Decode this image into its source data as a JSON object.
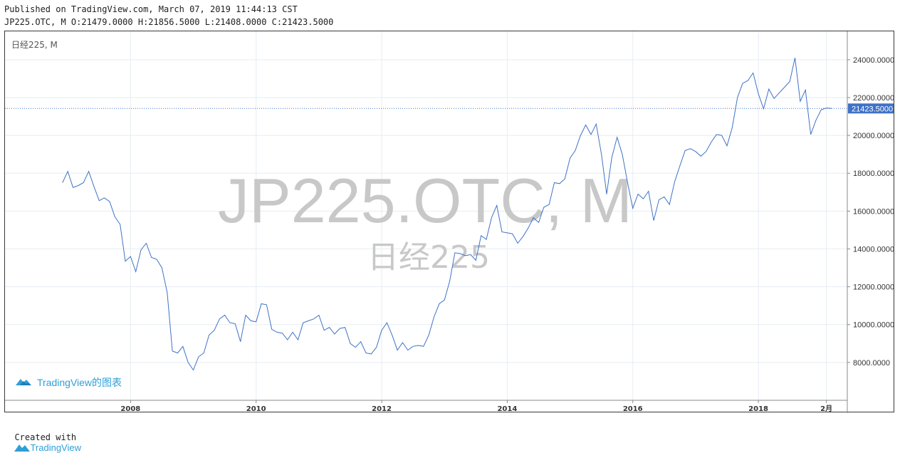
{
  "header": {
    "published": "Published on TradingView.com, March 07, 2019 11:44:13 CST",
    "ohlc": "JP225.OTC, M O:21479.0000 H:21856.5000 L:21408.0000 C:21423.5000"
  },
  "chart_label": "日经225, M",
  "watermark": {
    "symbol": "JP225.OTC, M",
    "name": "日经225"
  },
  "tv_badge": {
    "text": "TradingView的图表",
    "icon": "tradingview-cloud-icon"
  },
  "footer": {
    "created_with": "Created with",
    "brand": "TradingView",
    "icon": "tradingview-cloud-icon"
  },
  "colors": {
    "line": "#3f72c7",
    "grid": "#e6edf2",
    "price_label_bg": "#3f72c7",
    "brand": "#2f9fd8"
  },
  "chart_data": {
    "type": "line",
    "series": [
      {
        "name": "",
        "x": [
          "2006-12",
          "2007-01",
          "2007-02",
          "2007-03",
          "2007-04",
          "2007-05",
          "2007-06",
          "2007-07",
          "2007-08",
          "2007-09",
          "2007-10",
          "2007-11",
          "2007-12",
          "2008-01",
          "2008-02",
          "2008-03",
          "2008-04",
          "2008-05",
          "2008-06",
          "2008-07",
          "2008-08",
          "2008-09",
          "2008-10",
          "2008-11",
          "2008-12",
          "2009-01",
          "2009-02",
          "2009-03",
          "2009-04",
          "2009-05",
          "2009-06",
          "2009-07",
          "2009-08",
          "2009-09",
          "2009-10",
          "2009-11",
          "2009-12",
          "2010-01",
          "2010-02",
          "2010-03",
          "2010-04",
          "2010-05",
          "2010-06",
          "2010-07",
          "2010-08",
          "2010-09",
          "2010-10",
          "2010-11",
          "2010-12",
          "2011-01",
          "2011-02",
          "2011-03",
          "2011-04",
          "2011-05",
          "2011-06",
          "2011-07",
          "2011-08",
          "2011-09",
          "2011-10",
          "2011-11",
          "2011-12",
          "2012-01",
          "2012-02",
          "2012-03",
          "2012-04",
          "2012-05",
          "2012-06",
          "2012-07",
          "2012-08",
          "2012-09",
          "2012-10",
          "2012-11",
          "2012-12",
          "2013-01",
          "2013-02",
          "2013-03",
          "2013-04",
          "2013-05",
          "2013-06",
          "2013-07",
          "2013-08",
          "2013-09",
          "2013-10",
          "2013-11",
          "2013-12",
          "2014-01",
          "2014-02",
          "2014-03",
          "2014-04",
          "2014-05",
          "2014-06",
          "2014-07",
          "2014-08",
          "2014-09",
          "2014-10",
          "2014-11",
          "2014-12",
          "2015-01",
          "2015-02",
          "2015-03",
          "2015-04",
          "2015-05",
          "2015-06",
          "2015-07",
          "2015-08",
          "2015-09",
          "2015-10",
          "2015-11",
          "2015-12",
          "2016-01",
          "2016-02",
          "2016-03",
          "2016-04",
          "2016-05",
          "2016-06",
          "2016-07",
          "2016-08",
          "2016-09",
          "2016-10",
          "2016-11",
          "2016-12",
          "2017-01",
          "2017-02",
          "2017-03",
          "2017-04",
          "2017-05",
          "2017-06",
          "2017-07",
          "2017-08",
          "2017-09",
          "2017-10",
          "2017-11",
          "2017-12",
          "2018-01",
          "2018-02",
          "2018-03",
          "2018-04",
          "2018-05",
          "2018-06",
          "2018-07",
          "2018-08",
          "2018-09",
          "2018-10",
          "2018-11",
          "2018-12",
          "2019-01",
          "2019-02",
          "2019-03"
        ],
        "values": [
          17500,
          18100,
          17250,
          17350,
          17500,
          18100,
          17300,
          16550,
          16700,
          16500,
          15700,
          15300,
          13350,
          13600,
          12800,
          13950,
          14300,
          13550,
          13450,
          13000,
          11700,
          8600,
          8500,
          8850,
          8000,
          7600,
          8300,
          8500,
          9450,
          9700,
          10300,
          10500,
          10100,
          10050,
          9100,
          10500,
          10200,
          10150,
          11100,
          11050,
          9750,
          9600,
          9550,
          9200,
          9600,
          9200,
          10100,
          10200,
          10300,
          10500,
          9700,
          9850,
          9500,
          9800,
          9850,
          9000,
          8800,
          9100,
          8500,
          8450,
          8800,
          9700,
          10100,
          9450,
          8650,
          9050,
          8650,
          8850,
          8900,
          8850,
          9450,
          10400,
          11100,
          11300,
          12300,
          13800,
          13750,
          13650,
          13700,
          13400,
          14700,
          14500,
          15650,
          16300,
          14900,
          14850,
          14800,
          14300,
          14650,
          15100,
          15650,
          15400,
          16200,
          16350,
          17500,
          17450,
          17700,
          18800,
          19200,
          20000,
          20550,
          20050,
          20600,
          19000,
          16900,
          18850,
          19900,
          19000,
          17500,
          16150,
          16900,
          16650,
          17050,
          15500,
          16600,
          16750,
          16350,
          17550,
          18400,
          19200,
          19300,
          19150,
          18900,
          19150,
          19650,
          20050,
          20000,
          19450,
          20400,
          22000,
          22750,
          22900,
          23300,
          22200,
          21400,
          22450,
          21950,
          22250,
          22550,
          22850,
          24100,
          21800,
          22400,
          20050,
          20800,
          21350,
          21450,
          21423.5
        ],
        "color": "#3f72c7"
      }
    ],
    "x_ticks": [
      "2008",
      "2010",
      "2012",
      "2014",
      "2016",
      "2018",
      "2月"
    ],
    "y_ticks": [
      "8000.0000",
      "10000.0000",
      "12000.0000",
      "14000.0000",
      "16000.0000",
      "18000.0000",
      "20000.0000",
      "22000.0000",
      "24000.0000"
    ],
    "ylim": [
      6000,
      25500
    ],
    "xlim": [
      "2006-01",
      "2019-06"
    ],
    "last_price": {
      "value": 21423.5,
      "label": "21423.5000"
    },
    "grid": true,
    "legend": "none"
  }
}
